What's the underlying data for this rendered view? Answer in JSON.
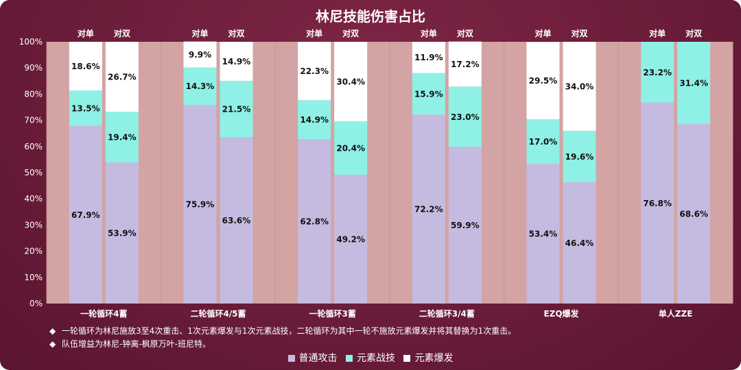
{
  "chart_data": {
    "type": "bar",
    "stacked": true,
    "percent": true,
    "title": "林尼技能伤害占比",
    "groups": [
      "一轮循环4蓄",
      "二轮循环4/5蓄",
      "一轮循环3蓄",
      "二轮循环3/4蓄",
      "EZQ爆发",
      "单人ZZE"
    ],
    "subcategories": [
      "对单",
      "对双"
    ],
    "y_ticks": [
      "0%",
      "10%",
      "20%",
      "30%",
      "40%",
      "50%",
      "60%",
      "70%",
      "80%",
      "90%",
      "100%"
    ],
    "ylim": [
      0,
      100
    ],
    "grid": false,
    "legend_position": "bottom",
    "series": [
      {
        "name": "普通攻击",
        "color": "#c5bbe0",
        "values": [
          [
            67.9,
            53.9
          ],
          [
            75.9,
            63.6
          ],
          [
            62.8,
            49.2
          ],
          [
            72.2,
            59.9
          ],
          [
            53.4,
            46.4
          ],
          [
            76.8,
            68.6
          ]
        ],
        "labels": [
          [
            "67.9%",
            "53.9%"
          ],
          [
            "75.9%",
            "63.6%"
          ],
          [
            "62.8%",
            "49.2%"
          ],
          [
            "72.2%",
            "59.9%"
          ],
          [
            "53.4%",
            "46.4%"
          ],
          [
            "76.8%",
            "68.6%"
          ]
        ]
      },
      {
        "name": "元素战技",
        "color": "#8ff0e6",
        "values": [
          [
            13.5,
            19.4
          ],
          [
            14.3,
            21.5
          ],
          [
            14.9,
            20.4
          ],
          [
            15.9,
            23.0
          ],
          [
            17.0,
            19.6
          ],
          [
            23.2,
            31.4
          ]
        ],
        "labels": [
          [
            "13.5%",
            "19.4%"
          ],
          [
            "14.3%",
            "21.5%"
          ],
          [
            "14.9%",
            "20.4%"
          ],
          [
            "15.9%",
            "23.0%"
          ],
          [
            "17.0%",
            "19.6%"
          ],
          [
            "23.2%",
            "31.4%"
          ]
        ]
      },
      {
        "name": "元素爆发",
        "color": "#ffffff",
        "values": [
          [
            18.6,
            26.7
          ],
          [
            9.9,
            14.9
          ],
          [
            22.3,
            30.4
          ],
          [
            11.9,
            17.2
          ],
          [
            29.5,
            34.0
          ],
          [
            0,
            0
          ]
        ],
        "labels": [
          [
            "18.6%",
            "26.7%"
          ],
          [
            "9.9%",
            "14.9%"
          ],
          [
            "22.3%",
            "30.4%"
          ],
          [
            "11.9%",
            "17.2%"
          ],
          [
            "29.5%",
            "34.0%"
          ],
          [
            "",
            ""
          ]
        ]
      }
    ]
  },
  "notes": [
    "一轮循环为林尼施放3至4次重击、1次元素爆发与1次元素战技，二轮循环为其中一轮不施放元素爆发并将其替换为1次重击。",
    "队伍增益为林尼-钟离-枫原万叶-班尼特。"
  ],
  "note_bullet": "◆",
  "legend_swatch_colors": [
    "#c5bbe0",
    "#8ff0e6",
    "#ffffff"
  ],
  "plot_area_color": "#d4a3a3",
  "stripe_color": "#c59393"
}
